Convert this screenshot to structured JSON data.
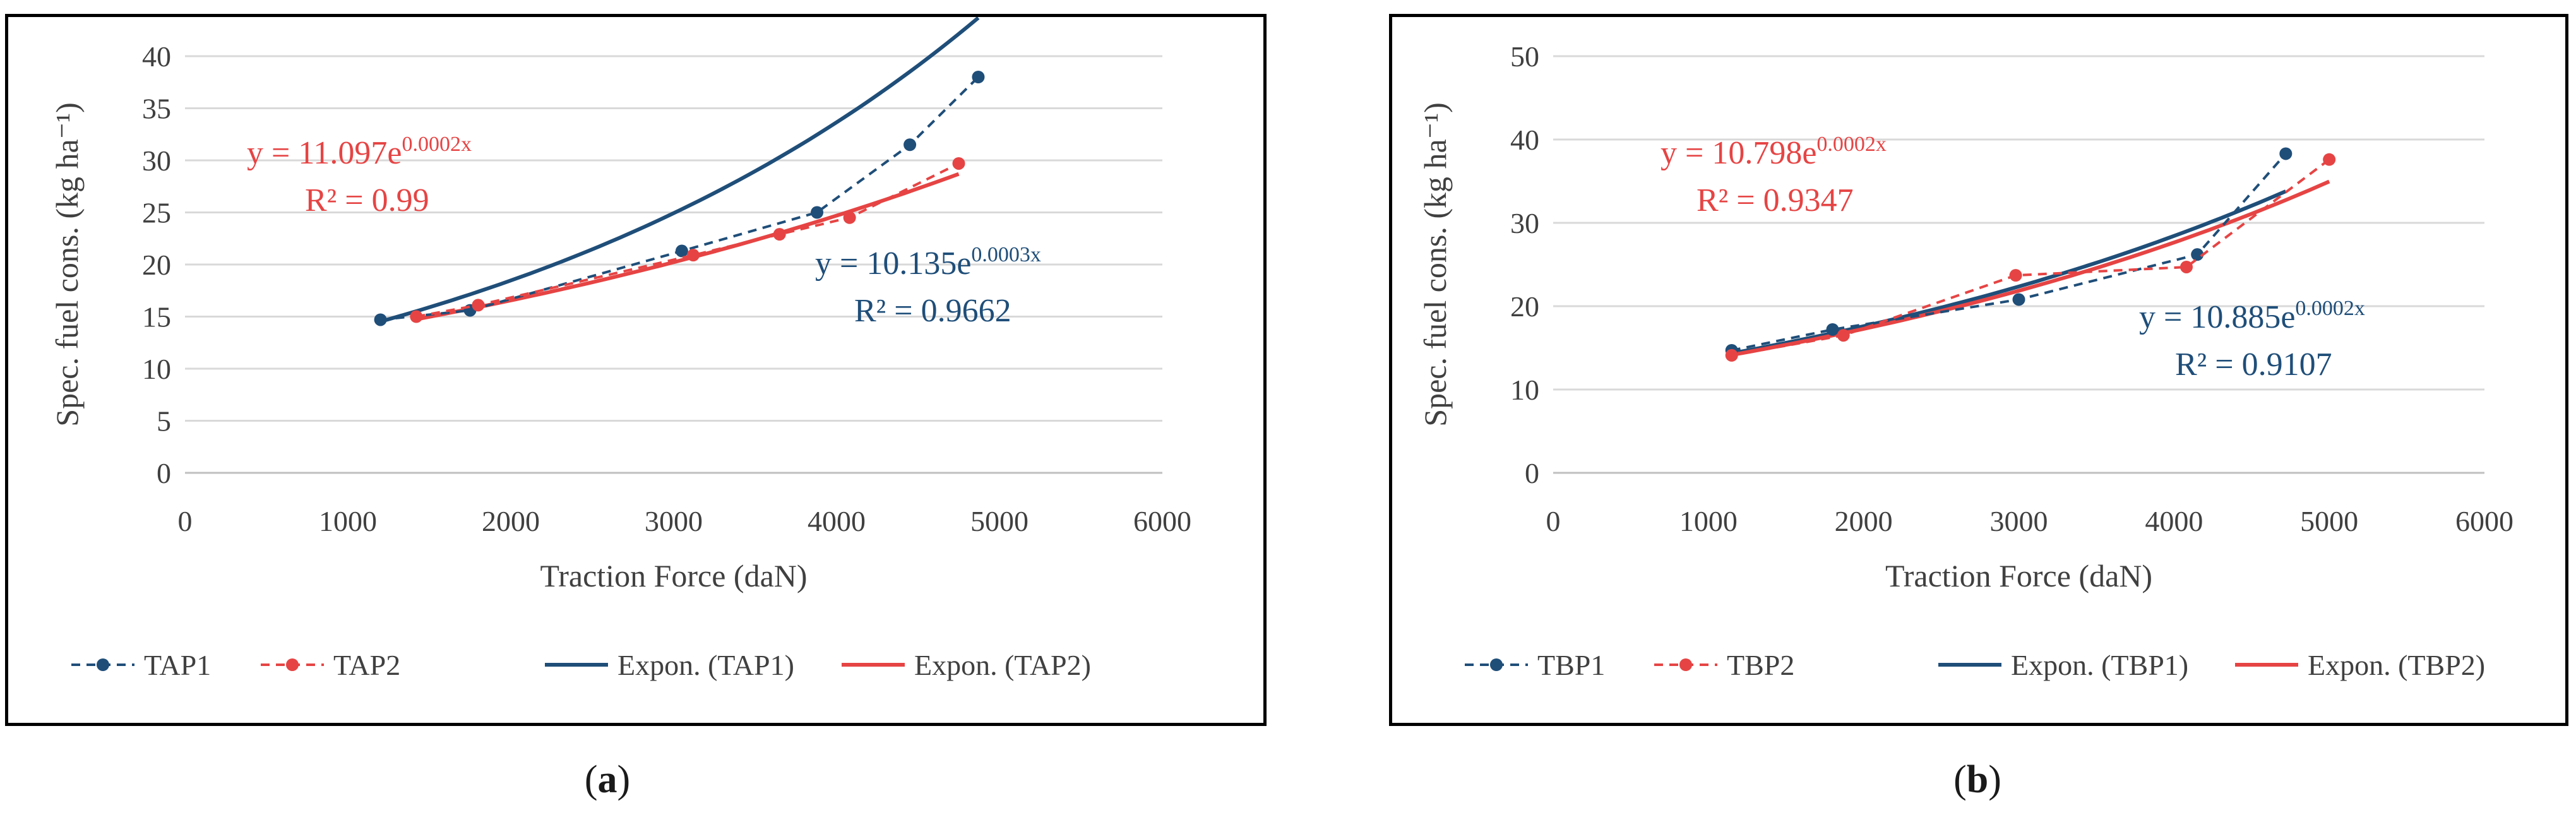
{
  "colors": {
    "series1": "#1f4e79",
    "series2": "#e64444",
    "grid": "#d9d9d9",
    "axis_text": "#404040"
  },
  "chart_data": [
    {
      "id": "a",
      "caption_letter": "a",
      "type": "scatter",
      "xlabel": "Traction Force (daN)",
      "ylabel": "Spec.  fuel cons. (kg ha⁻¹)",
      "xlim": [
        0,
        6000
      ],
      "ylim": [
        0,
        40
      ],
      "xticks": [
        0,
        1000,
        2000,
        3000,
        4000,
        5000,
        6000
      ],
      "yticks": [
        0,
        5,
        10,
        15,
        20,
        25,
        30,
        35,
        40
      ],
      "grid": "horizontal",
      "legend_position": "bottom",
      "series": [
        {
          "name": "TAP1",
          "style": "dashed-markers",
          "color": "#1f4e79",
          "x": [
            1200,
            1750,
            3050,
            3880,
            4450,
            4870
          ],
          "y": [
            14.7,
            15.6,
            21.3,
            25.0,
            31.5,
            38.0
          ]
        },
        {
          "name": "TAP2",
          "style": "dashed-markers",
          "color": "#e64444",
          "x": [
            1420,
            1800,
            3120,
            3650,
            4080,
            4750
          ],
          "y": [
            15.0,
            16.1,
            20.9,
            22.9,
            24.5,
            29.7
          ]
        }
      ],
      "trendlines": [
        {
          "name": "Expon. (TAP1)",
          "color": "#1f4e79",
          "a": 10.135,
          "b": 0.0003,
          "x_range": [
            1200,
            4870
          ]
        },
        {
          "name": "Expon. (TAP2)",
          "color": "#e64444",
          "a": 11.097,
          "b": 0.0002,
          "x_range": [
            1420,
            4750
          ]
        }
      ],
      "annotations": [
        {
          "color": "#e64444",
          "eq_base": "y = 11.097e",
          "eq_exp": "0.0002x",
          "r2": "R² = 0.99"
        },
        {
          "color": "#1f4e79",
          "eq_base": "y = 10.135e",
          "eq_exp": "0.0003x",
          "r2": "R² = 0.9662"
        }
      ],
      "legend": [
        "TAP1",
        "TAP2",
        "Expon. (TAP1)",
        "Expon. (TAP2)"
      ]
    },
    {
      "id": "b",
      "caption_letter": "b",
      "type": "scatter",
      "xlabel": "Traction Force (daN)",
      "ylabel": "Spec.  fuel cons. (kg ha⁻¹)",
      "xlim": [
        0,
        6000
      ],
      "ylim": [
        0,
        50
      ],
      "xticks": [
        0,
        1000,
        2000,
        3000,
        4000,
        5000,
        6000
      ],
      "yticks": [
        0,
        10,
        20,
        30,
        40,
        50
      ],
      "grid": "horizontal",
      "legend_position": "bottom",
      "series": [
        {
          "name": "TBP1",
          "style": "dashed-markers",
          "color": "#1f4e79",
          "x": [
            1150,
            1800,
            3000,
            4150,
            4720
          ],
          "y": [
            14.7,
            17.2,
            20.8,
            26.2,
            38.3
          ]
        },
        {
          "name": "TBP2",
          "style": "dashed-markers",
          "color": "#e64444",
          "x": [
            1150,
            1870,
            2980,
            4080,
            5000
          ],
          "y": [
            14.1,
            16.5,
            23.7,
            24.7,
            37.6
          ]
        }
      ],
      "trendlines": [
        {
          "name": "Expon. (TBP1)",
          "color": "#1f4e79",
          "a": 10.885,
          "b": 0.00024,
          "x_range": [
            1150,
            4720
          ]
        },
        {
          "name": "Expon. (TBP2)",
          "color": "#e64444",
          "a": 10.798,
          "b": 0.000235,
          "x_range": [
            1150,
            5000
          ]
        }
      ],
      "annotations": [
        {
          "color": "#e64444",
          "eq_base": "y = 10.798e",
          "eq_exp": "0.0002x",
          "r2": "R² = 0.9347"
        },
        {
          "color": "#1f4e79",
          "eq_base": "y = 10.885e",
          "eq_exp": "0.0002x",
          "r2": "R² = 0.9107"
        }
      ],
      "legend": [
        "TBP1",
        "TBP2",
        "Expon. (TBP1)",
        "Expon. (TBP2)"
      ]
    }
  ]
}
